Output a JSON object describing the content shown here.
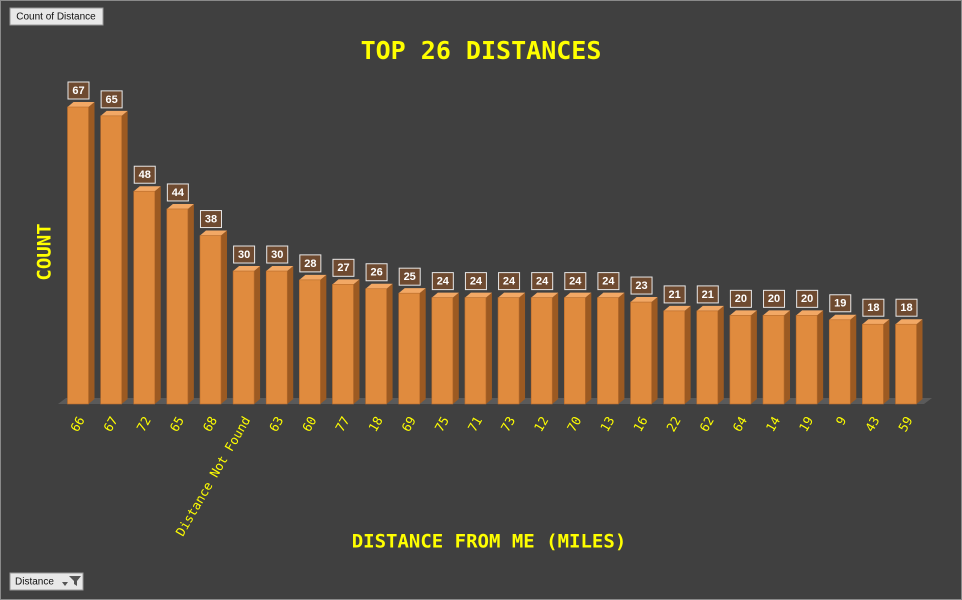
{
  "chart_data": {
    "type": "bar",
    "title": "TOP 26 DISTANCES",
    "y_label": "COUNT",
    "x_label": "DISTANCE FROM ME (MILES)",
    "value_field_button": "Count of Distance",
    "axis_field_button": "Distance",
    "categories": [
      "66",
      "67",
      "72",
      "65",
      "68",
      "Distance Not Found",
      "63",
      "60",
      "77",
      "18",
      "69",
      "75",
      "71",
      "73",
      "12",
      "70",
      "13",
      "16",
      "22",
      "62",
      "64",
      "14",
      "19",
      "9",
      "43",
      "59"
    ],
    "values": [
      67,
      65,
      48,
      44,
      38,
      30,
      30,
      28,
      27,
      26,
      25,
      24,
      24,
      24,
      24,
      24,
      24,
      23,
      21,
      21,
      20,
      20,
      20,
      19,
      18,
      18
    ],
    "color": "#e08b3e"
  }
}
